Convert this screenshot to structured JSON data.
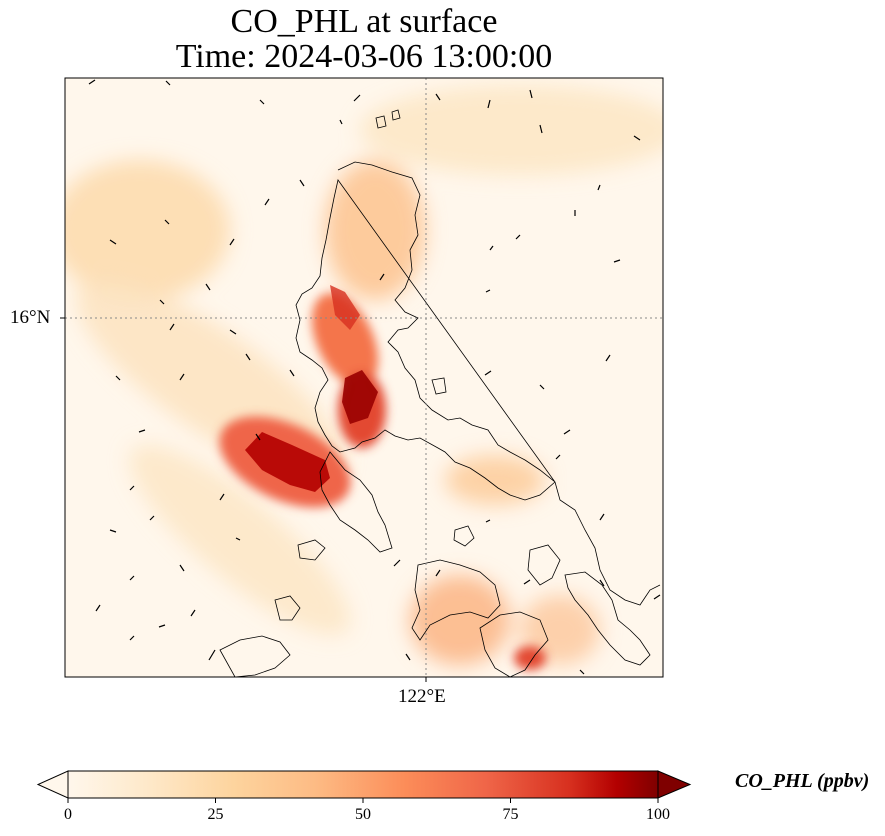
{
  "title": {
    "line1": "CO_PHL at surface",
    "line2": "Time: 2024-03-06 13:00:00"
  },
  "map": {
    "lat_label": "16°N",
    "lon_label": "122°E",
    "colormap": "OrRd",
    "colors": {
      "low": "#fff7ec",
      "mid_low": "#fdd49e",
      "mid": "#fc8d59",
      "high": "#d7301f",
      "max": "#7f0000",
      "coastline": "#000000",
      "gridline": "#888888"
    }
  },
  "colorbar": {
    "label": "CO_PHL (ppbv)",
    "ticks": [
      "0",
      "25",
      "50",
      "75",
      "100"
    ],
    "range": [
      0,
      100
    ]
  }
}
